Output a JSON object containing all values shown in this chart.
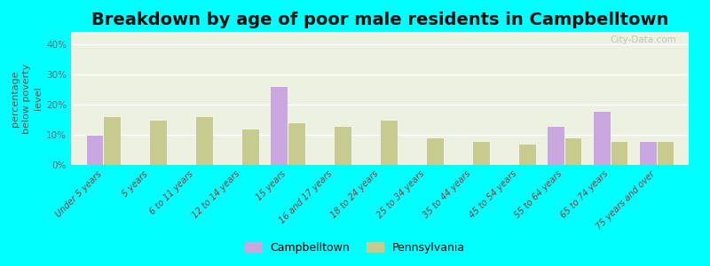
{
  "title": "Breakdown by age of poor male residents in Campbelltown",
  "ylabel": "percentage\nbelow poverty\nlevel",
  "background_color": "#00FFFF",
  "plot_bg_color": "#edf2e0",
  "categories": [
    "Under 5 years",
    "5 years",
    "6 to 11 years",
    "12 to 14 years",
    "15 years",
    "16 and 17 years",
    "18 to 24 years",
    "25 to 34 years",
    "35 to 44 years",
    "45 to 54 years",
    "55 to 64 years",
    "65 to 74 years",
    "75 years and over"
  ],
  "campbelltown": [
    10,
    0,
    0,
    0,
    26,
    0,
    0,
    0,
    0,
    0,
    13,
    18,
    8
  ],
  "pennsylvania": [
    16,
    15,
    16,
    12,
    14,
    13,
    15,
    9,
    8,
    7,
    9,
    8,
    8
  ],
  "campbelltown_color": "#c9a8e0",
  "pennsylvania_color": "#c8cb8e",
  "ylim": [
    0,
    44
  ],
  "yticks": [
    0,
    10,
    20,
    30,
    40
  ],
  "ytick_labels": [
    "0%",
    "10%",
    "20%",
    "30%",
    "40%"
  ],
  "watermark": "City-Data.com",
  "bar_width": 0.38,
  "title_fontsize": 14,
  "axis_label_fontsize": 8,
  "tick_fontsize": 7.5
}
